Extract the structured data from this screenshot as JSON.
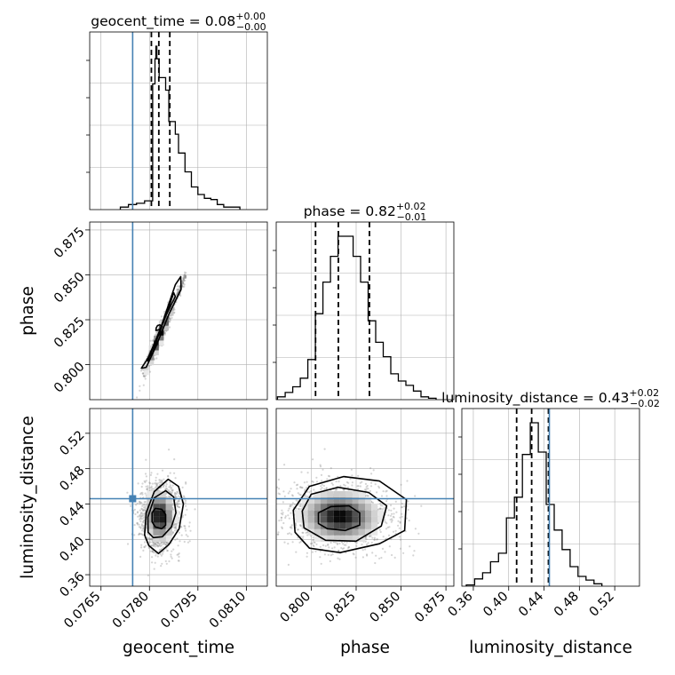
{
  "chart_data": {
    "type": "corner",
    "parameters": [
      "geocent_time",
      "phase",
      "luminosity_distance"
    ],
    "ranges": {
      "geocent_time": [
        0.07615,
        0.08165
      ],
      "phase": [
        0.7805,
        0.8794
      ],
      "luminosity_distance": [
        0.347,
        0.548
      ]
    },
    "ticks": {
      "geocent_time": [
        "0.0765",
        "0.0780",
        "0.0795",
        "0.0810"
      ],
      "phase": [
        "0.800",
        "0.825",
        "0.850",
        "0.875"
      ],
      "luminosity_distance": [
        "0.36",
        "0.40",
        "0.44",
        "0.48",
        "0.52"
      ]
    },
    "titles": {
      "geocent_time": {
        "name": "geocent_time",
        "value": "0.08",
        "plus": "+0.00",
        "minus": "−0.00"
      },
      "phase": {
        "name": "phase",
        "value": "0.82",
        "plus": "+0.02",
        "minus": "−0.01"
      },
      "luminosity_distance": {
        "name": "luminosity_distance",
        "value": "0.43",
        "plus": "+0.02",
        "minus": "−0.02"
      }
    },
    "quantiles": {
      "geocent_time": [
        0.07806,
        0.07829,
        0.07863
      ],
      "phase": [
        0.8024,
        0.8151,
        0.8324
      ],
      "luminosity_distance": [
        0.409,
        0.426,
        0.445
      ]
    },
    "truths": {
      "geocent_time": 0.07748,
      "luminosity_distance": 0.446
    },
    "histograms": {
      "geocent_time": {
        "edges": [
          0.0771,
          0.07735,
          0.0776,
          0.07785,
          0.0781,
          0.07817,
          0.0782,
          0.07823,
          0.0783,
          0.0785,
          0.0786,
          0.0788,
          0.0789,
          0.0791,
          0.0793,
          0.0795,
          0.0797,
          0.0799,
          0.0801,
          0.0803,
          0.08055,
          0.0808
        ],
        "counts": [
          2,
          4,
          5,
          7,
          100,
          120,
          130,
          120,
          105,
          95,
          70,
          60,
          45,
          30,
          18,
          12,
          9,
          8,
          4,
          2,
          2
        ]
      },
      "phase": {
        "edges": [
          0.7812,
          0.7855,
          0.7897,
          0.7939,
          0.7981,
          0.8023,
          0.8065,
          0.8107,
          0.8149,
          0.8191,
          0.8233,
          0.8275,
          0.8317,
          0.8359,
          0.8401,
          0.8443,
          0.8485,
          0.8527,
          0.8569,
          0.8611,
          0.8653,
          0.8695
        ],
        "counts": [
          2,
          5,
          9,
          15,
          28,
          60,
          82,
          100,
          114,
          114,
          100,
          82,
          55,
          40,
          30,
          18,
          13,
          10,
          6,
          2,
          1
        ]
      },
      "luminosity_distance": {
        "edges": [
          0.352,
          0.3615,
          0.3705,
          0.3795,
          0.3885,
          0.3975,
          0.4065,
          0.4155,
          0.4245,
          0.4335,
          0.4425,
          0.4515,
          0.4605,
          0.4695,
          0.4785,
          0.4875,
          0.4965,
          0.5055
        ],
        "counts": [
          1,
          6,
          11,
          20,
          27,
          56,
          73,
          108,
          134,
          110,
          67,
          46,
          30,
          16,
          8,
          5,
          2
        ]
      }
    },
    "contours": {
      "phase_vs_geocent_time": [
        {
          "x": [
            0.07825,
            0.07832,
            0.07838,
            0.07835,
            0.07826,
            0.0782,
            0.07821,
            0.07825
          ],
          "y": [
            0.8218,
            0.8222,
            0.8212,
            0.82,
            0.8192,
            0.819,
            0.8205,
            0.8218
          ]
        },
        {
          "x": [
            0.0781,
            0.07825,
            0.0786,
            0.07875,
            0.0788,
            0.07845,
            0.07812,
            0.07795,
            0.07792,
            0.0781
          ],
          "y": [
            0.8065,
            0.815,
            0.832,
            0.84,
            0.838,
            0.825,
            0.81,
            0.802,
            0.803,
            0.8065
          ]
        },
        {
          "x": [
            0.07795,
            0.0783,
            0.0788,
            0.07897,
            0.07898,
            0.0786,
            0.0782,
            0.0779,
            0.07775,
            0.07795
          ],
          "y": [
            0.8035,
            0.818,
            0.8445,
            0.849,
            0.842,
            0.828,
            0.81,
            0.7985,
            0.798,
            0.8035
          ]
        }
      ],
      "luminosity_distance_vs_geocent_time": [
        {
          "x": [
            0.07808,
            0.07818,
            0.07838,
            0.0785,
            0.0785,
            0.07838,
            0.07818,
            0.07808,
            0.07808
          ],
          "y": [
            0.42,
            0.414,
            0.412,
            0.416,
            0.428,
            0.434,
            0.435,
            0.43,
            0.42
          ]
        },
        {
          "x": [
            0.07795,
            0.07815,
            0.0785,
            0.07875,
            0.07882,
            0.07868,
            0.0784,
            0.07812,
            0.07796,
            0.07795
          ],
          "y": [
            0.425,
            0.447,
            0.455,
            0.448,
            0.43,
            0.414,
            0.403,
            0.402,
            0.408,
            0.425
          ]
        },
        {
          "x": [
            0.0779,
            0.07815,
            0.07858,
            0.0789,
            0.07905,
            0.07892,
            0.0786,
            0.07828,
            0.07798,
            0.07785,
            0.0779
          ],
          "y": [
            0.43,
            0.454,
            0.468,
            0.46,
            0.44,
            0.412,
            0.394,
            0.384,
            0.393,
            0.405,
            0.43
          ]
        }
      ],
      "luminosity_distance_vs_phase": [
        {
          "x": [
            0.804,
            0.809,
            0.819,
            0.827,
            0.827,
            0.821,
            0.811,
            0.804,
            0.804
          ],
          "y": [
            0.418,
            0.412,
            0.41,
            0.416,
            0.43,
            0.438,
            0.437,
            0.43,
            0.418
          ]
        },
        {
          "x": [
            0.795,
            0.8,
            0.815,
            0.832,
            0.842,
            0.839,
            0.825,
            0.808,
            0.796,
            0.795
          ],
          "y": [
            0.432,
            0.451,
            0.459,
            0.453,
            0.438,
            0.415,
            0.398,
            0.399,
            0.413,
            0.432
          ]
        },
        {
          "x": [
            0.79,
            0.799,
            0.818,
            0.838,
            0.853,
            0.852,
            0.838,
            0.816,
            0.799,
            0.791,
            0.79
          ],
          "y": [
            0.433,
            0.46,
            0.471,
            0.466,
            0.445,
            0.41,
            0.395,
            0.385,
            0.39,
            0.408,
            0.433
          ]
        }
      ]
    },
    "colors": {
      "histogram": "#000000",
      "truth": "#4682b4",
      "grid": "#b0b0b0",
      "samples": "#888888"
    }
  }
}
